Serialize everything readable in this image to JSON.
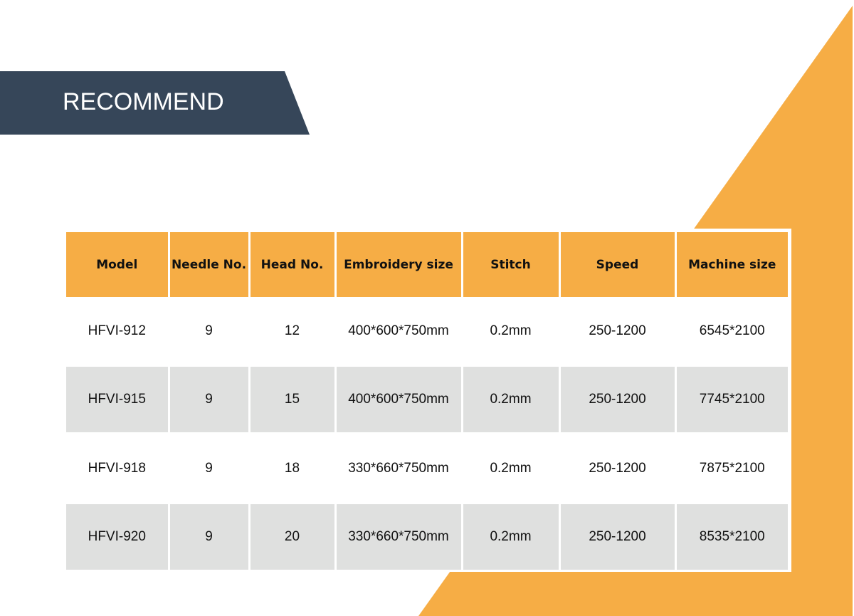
{
  "banner": {
    "title": "RECOMMEND"
  },
  "colors": {
    "accent": "#f6ad45",
    "banner": "#364659",
    "row_alt": "#dfe0df"
  },
  "table": {
    "headers": [
      "Model",
      "Needle No.",
      "Head No.",
      "Embroidery size",
      "Stitch",
      "Speed",
      "Machine size"
    ],
    "rows": [
      [
        "HFVI-912",
        "9",
        "12",
        "400*600*750mm",
        "0.2mm",
        "250-1200",
        "6545*2100"
      ],
      [
        "HFVI-915",
        "9",
        "15",
        "400*600*750mm",
        "0.2mm",
        "250-1200",
        "7745*2100"
      ],
      [
        "HFVI-918",
        "9",
        "18",
        "330*660*750mm",
        "0.2mm",
        "250-1200",
        "7875*2100"
      ],
      [
        "HFVI-920",
        "9",
        "20",
        "330*660*750mm",
        "0.2mm",
        "250-1200",
        "8535*2100"
      ]
    ]
  }
}
